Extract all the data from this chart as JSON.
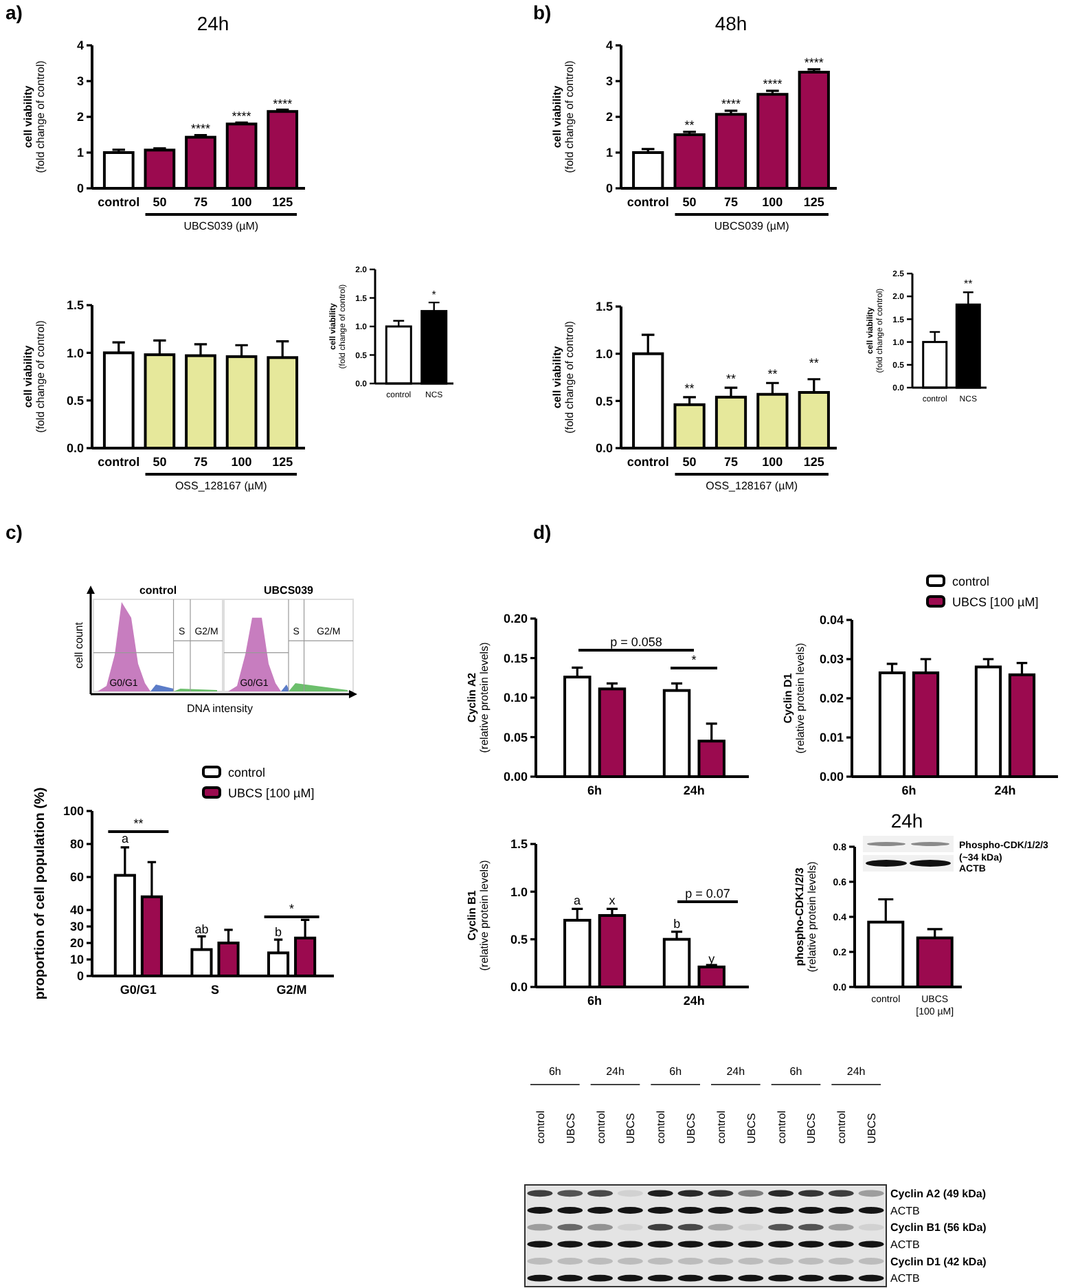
{
  "chart_data": [
    {
      "type": "bar",
      "title": "24h",
      "categories": [
        "control",
        "50",
        "75",
        "100",
        "125"
      ],
      "values": [
        1.0,
        1.07,
        1.43,
        1.8,
        2.15
      ],
      "errors": [
        0.08,
        0.05,
        0.06,
        0.04,
        0.05
      ],
      "colors": [
        "#ffffff",
        "#9b0a4f",
        "#9b0a4f",
        "#9b0a4f",
        "#9b0a4f"
      ],
      "ylim": [
        0,
        4
      ],
      "yticks": [
        0,
        1,
        2,
        3,
        4
      ],
      "ylabel": "cell viability\n(fold change of control)",
      "xlabel": "UBCS039 (µM)",
      "annotations": [
        "a)",
        {
          "text": "****",
          "x": "75",
          "y": 1.55
        },
        {
          "text": "****",
          "x": "100",
          "y": 1.9
        },
        {
          "text": "****",
          "x": "125",
          "y": 2.25
        }
      ]
    },
    {
      "type": "bar",
      "categories": [
        "control",
        "50",
        "75",
        "100",
        "125"
      ],
      "values": [
        1.0,
        0.98,
        0.97,
        0.96,
        0.95
      ],
      "errors": [
        0.11,
        0.15,
        0.12,
        0.12,
        0.17
      ],
      "colors": [
        "#ffffff",
        "#e6e89b",
        "#e6e89b",
        "#e6e89b",
        "#e6e89b"
      ],
      "ylim": [
        0,
        1.5
      ],
      "yticks": [
        {
          "value": 0,
          "label": "0.0"
        },
        {
          "value": 0.5,
          "label": "0.5"
        },
        {
          "value": 1,
          "label": "1.0"
        },
        {
          "value": 1.5,
          "label": "1.5"
        }
      ],
      "ylabel": "cell viability\n(fold change of control)",
      "xlabel": "OSS_128167 (µM)"
    },
    {
      "type": "bar",
      "categories": [
        "control",
        "NCS"
      ],
      "values": [
        1.0,
        1.27
      ],
      "errors": [
        0.1,
        0.15
      ],
      "colors": [
        "#ffffff",
        "#000000"
      ],
      "ylim": [
        0,
        2
      ],
      "yticks": [
        {
          "value": 0,
          "label": "0.0"
        },
        {
          "value": 0.5,
          "label": "0.5"
        },
        {
          "value": 1,
          "label": "1.0"
        },
        {
          "value": 1.5,
          "label": "1.5"
        },
        {
          "value": 2,
          "label": "2.0"
        }
      ],
      "ylabel": "cell viability\n(fold change of control)",
      "annotations": [
        {
          "text": "*",
          "x": "NCS",
          "y": 1.5
        }
      ]
    },
    {
      "type": "bar",
      "title": "48h",
      "categories": [
        "control",
        "50",
        "75",
        "100",
        "125"
      ],
      "values": [
        1.0,
        1.5,
        2.07,
        2.63,
        3.25
      ],
      "errors": [
        0.1,
        0.08,
        0.1,
        0.1,
        0.08
      ],
      "colors": [
        "#ffffff",
        "#9b0a4f",
        "#9b0a4f",
        "#9b0a4f",
        "#9b0a4f"
      ],
      "ylim": [
        0,
        4
      ],
      "yticks": [
        0,
        1,
        2,
        3,
        4
      ],
      "ylabel": "cell viability\n(fold change of control)",
      "xlabel": "UBCS039 (µM)",
      "annotations": [
        "b)",
        {
          "text": "**",
          "x": "50",
          "y": 1.66
        },
        {
          "text": "****",
          "x": "75",
          "y": 2.25
        },
        {
          "text": "****",
          "x": "100",
          "y": 2.81
        },
        {
          "text": "****",
          "x": "125",
          "y": 3.4
        }
      ]
    },
    {
      "type": "bar",
      "categories": [
        "control",
        "50",
        "75",
        "100",
        "125"
      ],
      "values": [
        1.0,
        0.46,
        0.54,
        0.57,
        0.59
      ],
      "errors": [
        0.2,
        0.08,
        0.1,
        0.12,
        0.14
      ],
      "colors": [
        "#ffffff",
        "#e6e89b",
        "#e6e89b",
        "#e6e89b",
        "#e6e89b"
      ],
      "ylim": [
        0,
        1.5
      ],
      "yticks": [
        {
          "value": 0,
          "label": "0.0"
        },
        {
          "value": 0.5,
          "label": "0.5"
        },
        {
          "value": 1,
          "label": "1.0"
        },
        {
          "value": 1.5,
          "label": "1.5"
        }
      ],
      "ylabel": "cell viability\n(fold change of control)",
      "xlabel": "OSS_128167 (µM)",
      "annotations": [
        {
          "text": "**",
          "x": "50",
          "y": 0.59
        },
        {
          "text": "**",
          "x": "75",
          "y": 0.69
        },
        "**",
        "**"
      ]
    },
    {
      "type": "bar",
      "categories": [
        "control",
        "NCS"
      ],
      "values": [
        1.0,
        1.82
      ],
      "errors": [
        0.22,
        0.27
      ],
      "colors": [
        "#ffffff",
        "#000000"
      ],
      "ylim": [
        0,
        2.5
      ],
      "yticks": [
        {
          "value": 0,
          "label": "0.0"
        },
        {
          "value": 0.5,
          "label": "0.5"
        },
        {
          "value": 1,
          "label": "1.0"
        },
        {
          "value": 1.5,
          "label": "1.5"
        },
        {
          "value": 2,
          "label": "2.0"
        },
        {
          "value": 2.5,
          "label": "2.5"
        }
      ],
      "ylabel": "cell viability\n(fold change of control)",
      "annotations": [
        {
          "text": "**",
          "x": "NCS",
          "y": 2.2
        }
      ]
    },
    {
      "type": "other",
      "categories": [
        "control",
        "UBCS039"
      ],
      "xlabel": "DNA intensity",
      "ylabel": "cell count",
      "annotations": [
        "c)",
        "S",
        "G2/M",
        "G0/G1",
        "S",
        "G2/M",
        "G0/G1"
      ]
    },
    {
      "type": "bar",
      "categories": [
        "G0/G1",
        "S",
        "G2/M"
      ],
      "series": [
        {
          "name": "control",
          "color": "#ffffff",
          "values": [
            61,
            16,
            14
          ],
          "errors": [
            17,
            8,
            8
          ]
        },
        {
          "name": "UBCS [100 µM]",
          "color": "#9b0a4f",
          "values": [
            48,
            20,
            23
          ],
          "errors": [
            21,
            8,
            11
          ]
        }
      ],
      "ylim": [
        0,
        100
      ],
      "yticks": [
        0,
        10,
        20,
        30,
        40,
        60,
        80,
        100
      ],
      "ylabel": "proportion of cell population (%)",
      "legend": "top right",
      "annotations": [
        "a",
        "**",
        "ab",
        {
          "text": "b",
          "x": "G2/M",
          "y": 24
        },
        "*"
      ]
    },
    {
      "type": "bar",
      "categories": [
        "6h",
        "24h"
      ],
      "series": [
        {
          "color": "#ffffff",
          "values": [
            0.126,
            0.109
          ],
          "errors": [
            0.012,
            0.009
          ]
        },
        {
          "color": "#9b0a4f",
          "values": [
            0.111,
            0.045
          ],
          "errors": [
            0.007,
            0.022
          ]
        }
      ],
      "ylim": [
        0,
        0.2
      ],
      "yticks": [
        {
          "value": 0,
          "label": "0.00"
        },
        {
          "value": 0.05,
          "label": "0.05"
        },
        {
          "value": 0.1,
          "label": "0.10"
        },
        {
          "value": 0.15,
          "label": "0.15"
        },
        {
          "value": 0.2,
          "label": "0.20"
        }
      ],
      "ylabel": "Cyclin A2\n(relative protein levels)",
      "annotations": [
        "d)",
        "p = 0.058",
        "*"
      ]
    },
    {
      "type": "bar",
      "categories": [
        "6h",
        "24h"
      ],
      "series": [
        {
          "name": "control",
          "color": "#ffffff",
          "values": [
            0.0265,
            0.028
          ],
          "errors": [
            0.0023,
            0.002
          ]
        },
        {
          "name": "UBCS [100 µM]",
          "color": "#9b0a4f",
          "values": [
            0.0265,
            0.026
          ],
          "errors": [
            0.0035,
            0.003
          ]
        }
      ],
      "ylim": [
        0,
        0.04
      ],
      "yticks": [
        {
          "value": 0,
          "label": "0.00"
        },
        {
          "value": 0.01,
          "label": "0.01"
        },
        {
          "value": 0.02,
          "label": "0.02"
        },
        {
          "value": 0.03,
          "label": "0.03"
        },
        {
          "value": 0.04,
          "label": "0.04"
        }
      ],
      "ylabel": "Cyclin D1\n(relative protein levels)",
      "legend": "top right"
    },
    {
      "type": "bar",
      "categories": [
        "6h",
        "24h"
      ],
      "series": [
        {
          "color": "#ffffff",
          "values": [
            0.7,
            0.5
          ],
          "errors": [
            0.12,
            0.08
          ]
        },
        {
          "color": "#9b0a4f",
          "values": [
            0.75,
            0.21
          ],
          "errors": [
            0.07,
            0.02
          ]
        }
      ],
      "ylim": [
        0,
        1.5
      ],
      "yticks": [
        {
          "value": 0,
          "label": "0.0"
        },
        {
          "value": 0.5,
          "label": "0.5"
        },
        {
          "value": 1,
          "label": "1.0"
        },
        {
          "value": 1.5,
          "label": "1.5"
        }
      ],
      "ylabel": "Cyclin B1\n(relative protein levels)",
      "annotations": [
        "a",
        "x",
        "b",
        {
          "text": "y",
          "x": "24h",
          "y": 0.25
        },
        "p = 0.07"
      ]
    },
    {
      "type": "bar",
      "title": "24h",
      "categories": [
        "control",
        "UBCS\n[100 µM]"
      ],
      "values": [
        0.37,
        0.28
      ],
      "errors": [
        0.13,
        0.05
      ],
      "colors": [
        "#ffffff",
        "#9b0a4f"
      ],
      "ylim": [
        0,
        0.8
      ],
      "yticks": [
        {
          "value": 0,
          "label": "0.0"
        },
        {
          "value": 0.2,
          "label": "0.2"
        },
        {
          "value": 0.4,
          "label": "0.4"
        },
        {
          "value": 0.6,
          "label": "0.6"
        },
        {
          "value": 0.8,
          "label": "0.8"
        }
      ],
      "ylabel": "phospho-CDK1/2/3\n(relative protein levels)",
      "annotations": [
        "Phospho-CDK/1/2/3\n(~34 kDa)",
        "ACTB"
      ]
    },
    {
      "type": "other",
      "categories": [
        "control",
        "UBCS",
        "control",
        "UBCS",
        "control",
        "UBCS",
        "control",
        "UBCS",
        "control",
        "UBCS",
        "control",
        "UBCS"
      ],
      "annotations": [
        "6h",
        "24h",
        "6h",
        "24h",
        "6h",
        "24h"
      ],
      "y_categories": [
        "Cyclin A2 (49 kDa)",
        "ACTB",
        "Cyclin B1 (56 kDa)",
        "ACTB",
        "Cyclin D1 (42 kDa)",
        "ACTB"
      ]
    }
  ]
}
